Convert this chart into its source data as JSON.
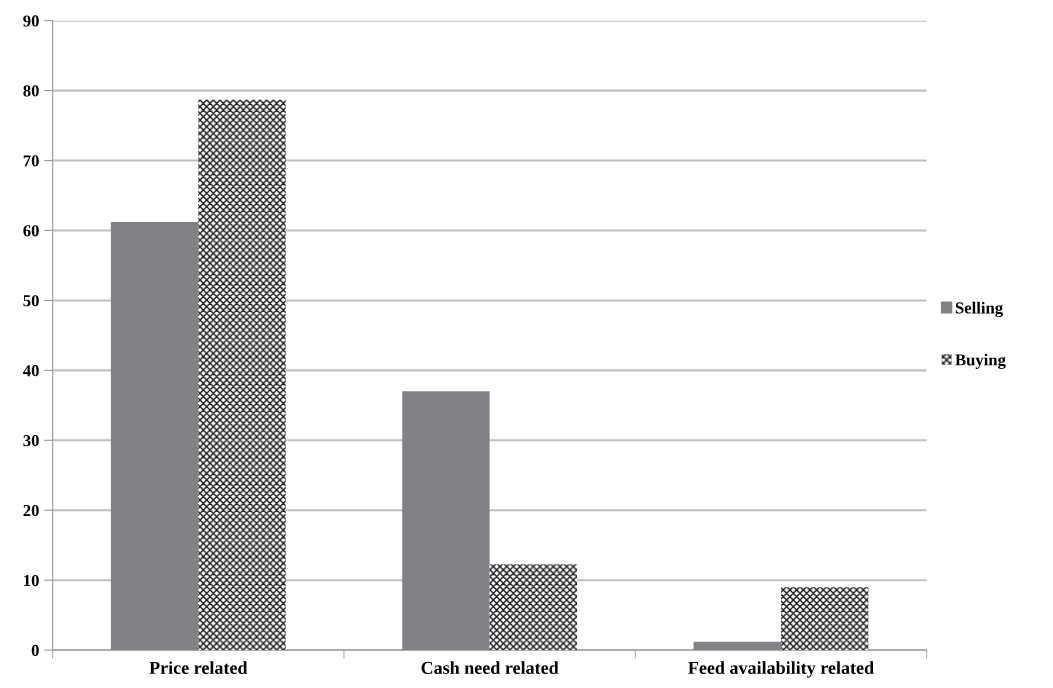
{
  "chart_data": {
    "type": "bar",
    "categories": [
      "Price related",
      "Cash need related",
      "Feed availability related"
    ],
    "series": [
      {
        "name": "Selling",
        "color": "#808285",
        "values": [
          61.2,
          37,
          1.2
        ]
      },
      {
        "name": "Buying",
        "color": "#1a1a1a",
        "values": [
          78.7,
          12.3,
          9
        ]
      }
    ],
    "ylim": [
      0,
      90
    ],
    "yticks": [
      0,
      10,
      20,
      30,
      40,
      50,
      60,
      70,
      80,
      90
    ],
    "grid": "y",
    "legend": "right"
  }
}
